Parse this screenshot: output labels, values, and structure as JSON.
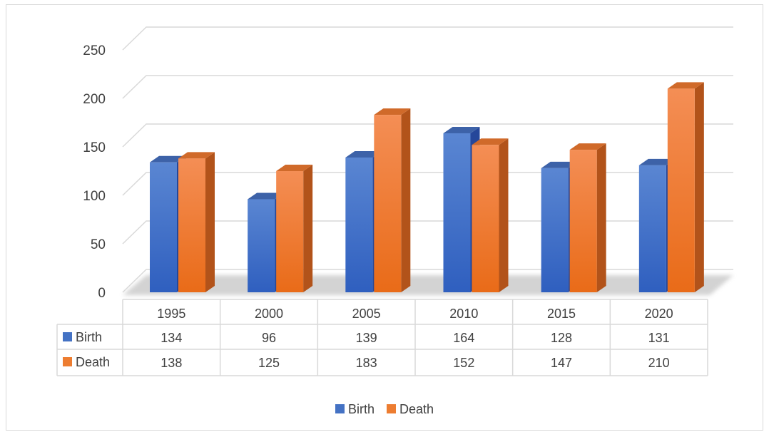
{
  "chart_data": {
    "type": "bar",
    "style": "3d-clustered-column-with-data-table",
    "categories": [
      "1995",
      "2000",
      "2005",
      "2010",
      "2015",
      "2020"
    ],
    "series": [
      {
        "name": "Birth",
        "values": [
          134,
          96,
          139,
          164,
          128,
          131
        ],
        "color": "#4472C4"
      },
      {
        "name": "Death",
        "values": [
          138,
          125,
          183,
          152,
          147,
          210
        ],
        "color": "#ED7D31"
      }
    ],
    "y_ticks": [
      "0",
      "50",
      "100",
      "150",
      "200",
      "250"
    ],
    "ylim": [
      0,
      250
    ],
    "title": "",
    "xlabel": "",
    "ylabel": "",
    "grid": true,
    "legend_position": "bottom"
  },
  "colors": {
    "birth_front_top": "#5A86D2",
    "birth_front_bottom": "#2F5FBF",
    "birth_side": "#25479A",
    "birth_top": "#3D62A8",
    "death_front_top": "#F48E55",
    "death_front_bottom": "#E96B18",
    "death_side": "#B2531A",
    "death_top": "#D06A2A",
    "grid": "#d9d9d9",
    "text": "#404040"
  }
}
